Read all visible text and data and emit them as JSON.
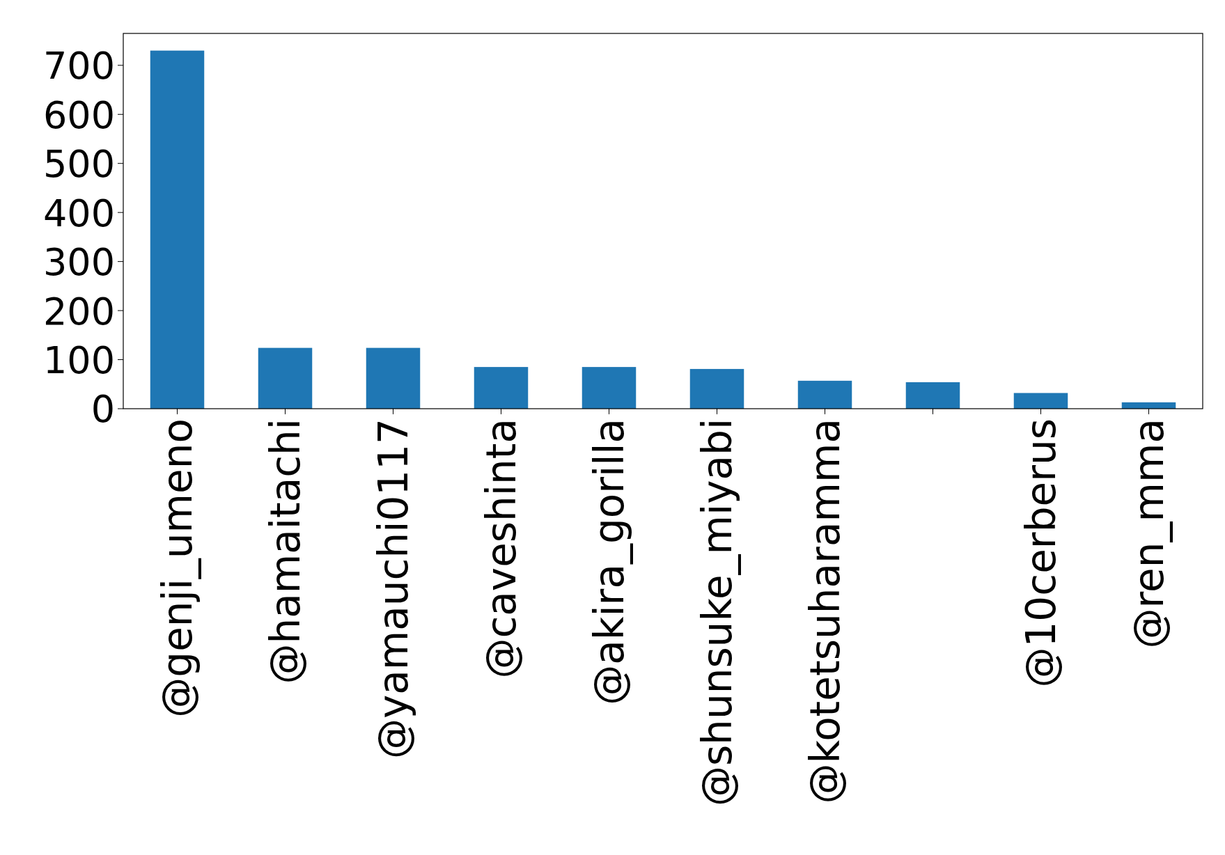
{
  "chart_data": {
    "type": "bar",
    "categories": [
      "@genji_umeno",
      "@hamaitachi",
      "@yamauchi0117",
      "@caveshinta",
      "@akira_gorilla",
      "@shunsuke_miyabi",
      "@kotetsuharamma",
      null,
      "@10cerberus",
      "@ren_mma"
    ],
    "values": [
      730,
      124,
      124,
      85,
      85,
      81,
      57,
      54,
      32,
      13
    ],
    "color": "#1f77b4",
    "ylim": [
      0,
      765
    ],
    "yticks": [
      0,
      100,
      200,
      300,
      400,
      500,
      600,
      700
    ],
    "grid": false
  }
}
